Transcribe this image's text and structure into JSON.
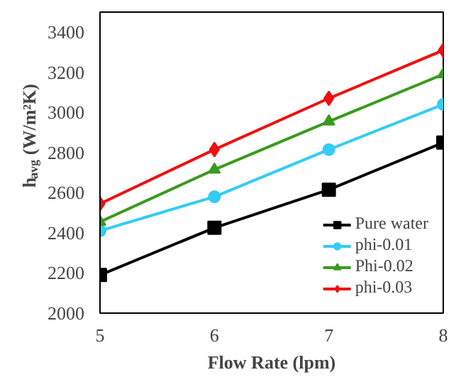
{
  "chart_data": {
    "type": "line",
    "xlabel": "Flow Rate (lpm)",
    "ylabel": "h$_{avg}$ (W/m²K)",
    "x": [
      5,
      6,
      7,
      8
    ],
    "xlim": [
      5,
      8
    ],
    "xticks": [
      5,
      6,
      7,
      8
    ],
    "ylim": [
      2000,
      3500
    ],
    "yticks": [
      2000,
      2200,
      2400,
      2600,
      2800,
      3000,
      3200,
      3400
    ],
    "grid": false,
    "legend": "bottom right",
    "line_style": "solid",
    "series": [
      {
        "name": "Pure water",
        "color": "#000000",
        "marker": "square",
        "values": [
          2190,
          2425,
          2615,
          2850
        ]
      },
      {
        "name": "phi-0.01",
        "color": "#33ccf5",
        "marker": "circle",
        "values": [
          2410,
          2580,
          2815,
          3040
        ]
      },
      {
        "name": "Phi-0.02",
        "color": "#3a9a1e",
        "marker": "triangle",
        "values": [
          2455,
          2715,
          2955,
          3190
        ]
      },
      {
        "name": "phi-0.03",
        "color": "#ee1111",
        "marker": "diamond",
        "values": [
          2545,
          2815,
          3070,
          3310
        ]
      }
    ]
  }
}
